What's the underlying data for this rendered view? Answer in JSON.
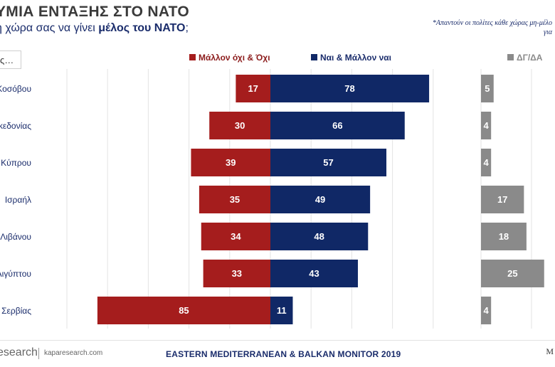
{
  "header": {
    "title": "ΥΜΙΑ ΕΝΤΑΞΗΣ ΣΤΟ ΝΑΤΟ",
    "subtitle_pre": "η χώρα σας να γίνει ",
    "subtitle_bold": "μέλος του ΝΑΤΟ",
    "subtitle_post": ";",
    "note_line1": "*Απαντούν οι πολίτες κάθε χώρας μη-μέλο",
    "note_line2": "για"
  },
  "legend": {
    "box_text": "ς…",
    "negative_label": "Μάλλον όχι & Όχι",
    "positive_label": "Ναι & Μάλλον ναι",
    "dk_label": "ΔΓ/ΔΑ"
  },
  "colors": {
    "negative": "#a51d1d",
    "positive": "#102866",
    "dk": "#8a8a8a"
  },
  "chart_data": {
    "type": "bar",
    "orientation": "horizontal",
    "stacked": "diverging",
    "categories": [
      "Κοσόβου",
      "ακεδονίας",
      "Κύπρου",
      "Ισραήλ",
      "Λιβάνου",
      "Αιγύπτου",
      "Σερβίας"
    ],
    "series": [
      {
        "name": "Μάλλον όχι & Όχι",
        "values": [
          17,
          30,
          39,
          35,
          34,
          33,
          85
        ]
      },
      {
        "name": "Ναι & Μάλλον ναι",
        "values": [
          78,
          66,
          57,
          49,
          48,
          43,
          11
        ]
      },
      {
        "name": "ΔΓ/ΔΑ",
        "values": [
          5,
          4,
          4,
          17,
          18,
          25,
          4
        ]
      }
    ],
    "xlim": [
      -100,
      100
    ],
    "grid": true,
    "legend": "top"
  },
  "footer": {
    "brand": "esearch",
    "url": "kaparesearch.com",
    "center": "EASTERN MEDITERRANEAN & BALKAN MONITOR 2019",
    "right": "M"
  }
}
